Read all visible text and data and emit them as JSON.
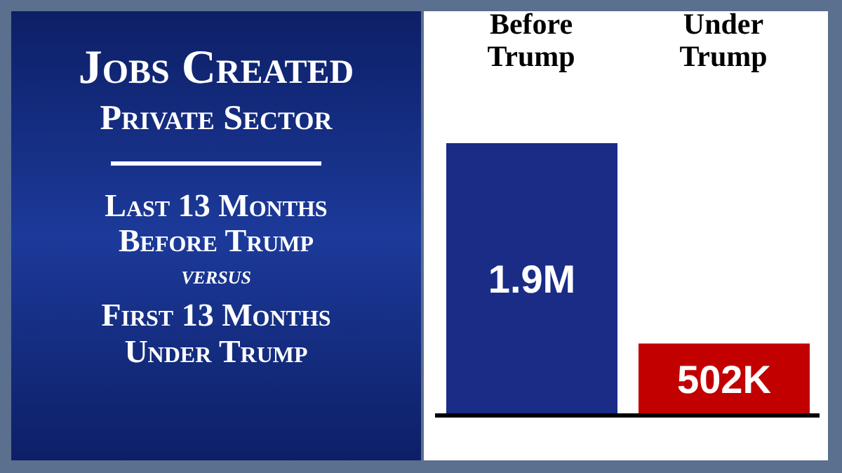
{
  "chart_data": {
    "type": "bar",
    "title": "Jobs Created",
    "subtitle": "Private Sector",
    "annotations": [
      "Last 13 Months Before Trump",
      "VERSUS",
      "First 13 Months Under Trump"
    ],
    "categories": [
      "Before Trump",
      "Under Trump"
    ],
    "values": [
      1900000,
      502000
    ],
    "colors": [
      "#1a2c86",
      "#c20000"
    ],
    "value_labels": [
      "1.9M",
      "502K"
    ]
  }
}
